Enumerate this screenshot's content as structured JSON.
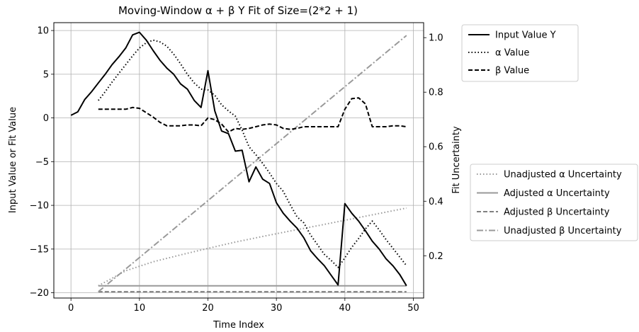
{
  "chart_data": {
    "type": "line",
    "title": "Moving-Window α + β Y Fit of Size=(2*2 + 1)",
    "xlabel": "Time Index",
    "ylabel_left": "Input Value or Fit Value",
    "ylabel_right": "Fit Uncertainty",
    "xlim": [
      -2.5,
      51.5
    ],
    "ylim_left": [
      -20.6,
      10.9
    ],
    "ylim_right": [
      0.045,
      1.055
    ],
    "x_ticks": [
      "0",
      "10",
      "20",
      "30",
      "40",
      "50"
    ],
    "y_left_ticks": [
      "−20",
      "−15",
      "−10",
      "−5",
      "0",
      "5",
      "10"
    ],
    "y_right_ticks": [
      "0.2",
      "0.4",
      "0.6",
      "0.8",
      "1.0"
    ],
    "grid": true,
    "legend_left_placement": "upper right, outside plot",
    "legend_right_placement": "right, outside plot",
    "series_left": [
      {
        "name": "Input Value Y",
        "style": "solid",
        "color": "#000000",
        "x": [
          0,
          1,
          2,
          3,
          4,
          5,
          6,
          7,
          8,
          9,
          10,
          11,
          12,
          13,
          14,
          15,
          16,
          17,
          18,
          19,
          20,
          21,
          22,
          23,
          24,
          25,
          26,
          27,
          28,
          29,
          30,
          31,
          32,
          33,
          34,
          35,
          36,
          37,
          38,
          39,
          40,
          41,
          42,
          43,
          44,
          45,
          46,
          47,
          48,
          49
        ],
        "y": [
          0.3,
          0.7,
          2.1,
          3.0,
          4.0,
          5.0,
          6.1,
          7.0,
          8.0,
          9.5,
          9.8,
          8.9,
          7.7,
          6.6,
          5.7,
          5.0,
          3.9,
          3.3,
          2.0,
          1.2,
          5.4,
          0.8,
          -1.5,
          -1.8,
          -3.8,
          -3.7,
          -7.3,
          -5.6,
          -7.0,
          -7.5,
          -9.7,
          -10.9,
          -11.8,
          -12.6,
          -13.7,
          -15.2,
          -16.1,
          -16.9,
          -18.0,
          -19.1,
          -9.8,
          -10.9,
          -11.8,
          -12.9,
          -14.1,
          -15.0,
          -16.1,
          -16.9,
          -17.9,
          -19.2
        ]
      },
      {
        "name": "α Value",
        "style": "dotted",
        "color": "#000000",
        "x": [
          4,
          5,
          6,
          7,
          8,
          9,
          10,
          11,
          12,
          13,
          14,
          15,
          16,
          17,
          18,
          19,
          20,
          21,
          22,
          23,
          24,
          25,
          26,
          27,
          28,
          29,
          30,
          31,
          32,
          33,
          34,
          35,
          36,
          37,
          38,
          39,
          40,
          41,
          42,
          43,
          44,
          45,
          46,
          47,
          48,
          49
        ],
        "y": [
          2.0,
          3.0,
          4.1,
          5.1,
          6.1,
          7.1,
          8.0,
          8.6,
          8.9,
          8.7,
          8.2,
          7.3,
          6.2,
          5.0,
          4.0,
          3.3,
          3.2,
          2.6,
          1.5,
          0.8,
          0.2,
          -1.4,
          -3.3,
          -4.2,
          -5.2,
          -6.3,
          -7.5,
          -8.4,
          -9.9,
          -11.3,
          -12.0,
          -13.4,
          -14.5,
          -15.6,
          -16.3,
          -17.1,
          -16.0,
          -14.8,
          -13.8,
          -12.7,
          -11.8,
          -12.8,
          -13.9,
          -14.9,
          -15.9,
          -16.9
        ]
      },
      {
        "name": "β Value",
        "style": "dashed",
        "color": "#000000",
        "x": [
          4,
          5,
          6,
          7,
          8,
          9,
          10,
          11,
          12,
          13,
          14,
          15,
          16,
          17,
          18,
          19,
          20,
          21,
          22,
          23,
          24,
          25,
          26,
          27,
          28,
          29,
          30,
          31,
          32,
          33,
          34,
          35,
          36,
          37,
          38,
          39,
          40,
          41,
          42,
          43,
          44,
          45,
          46,
          47,
          48,
          49
        ],
        "y": [
          1.0,
          1.0,
          1.0,
          1.0,
          1.0,
          1.2,
          1.1,
          0.6,
          0.1,
          -0.5,
          -0.9,
          -0.9,
          -0.9,
          -0.8,
          -0.8,
          -0.9,
          0.0,
          -0.2,
          -0.7,
          -1.6,
          -1.2,
          -1.3,
          -1.2,
          -1.0,
          -0.8,
          -0.7,
          -0.8,
          -1.2,
          -1.3,
          -1.2,
          -1.0,
          -1.0,
          -1.0,
          -1.0,
          -1.0,
          -1.0,
          1.0,
          2.2,
          2.3,
          1.6,
          -1.0,
          -1.0,
          -1.0,
          -0.9,
          -0.9,
          -1.0
        ]
      }
    ],
    "series_right": [
      {
        "name": "Unadjusted α Uncertainty",
        "style": "dotted",
        "color": "#999999",
        "x": [
          4,
          8,
          12,
          16,
          20,
          24,
          28,
          32,
          36,
          40,
          44,
          49
        ],
        "y": [
          0.09,
          0.145,
          0.178,
          0.203,
          0.227,
          0.25,
          0.271,
          0.291,
          0.31,
          0.33,
          0.35,
          0.375
        ]
      },
      {
        "name": "Adjusted α Uncertainty",
        "style": "solid",
        "color": "#999999",
        "x": [
          4,
          49
        ],
        "y": [
          0.09,
          0.09
        ]
      },
      {
        "name": "Adjusted β Uncertainty",
        "style": "dashed",
        "color": "#808080",
        "x": [
          4,
          49
        ],
        "y": [
          0.068,
          0.068
        ]
      },
      {
        "name": "Unadjusted β Uncertainty",
        "style": "dashdot",
        "color": "#999999",
        "x": [
          4,
          49
        ],
        "y": [
          0.068,
          1.008
        ]
      }
    ]
  }
}
